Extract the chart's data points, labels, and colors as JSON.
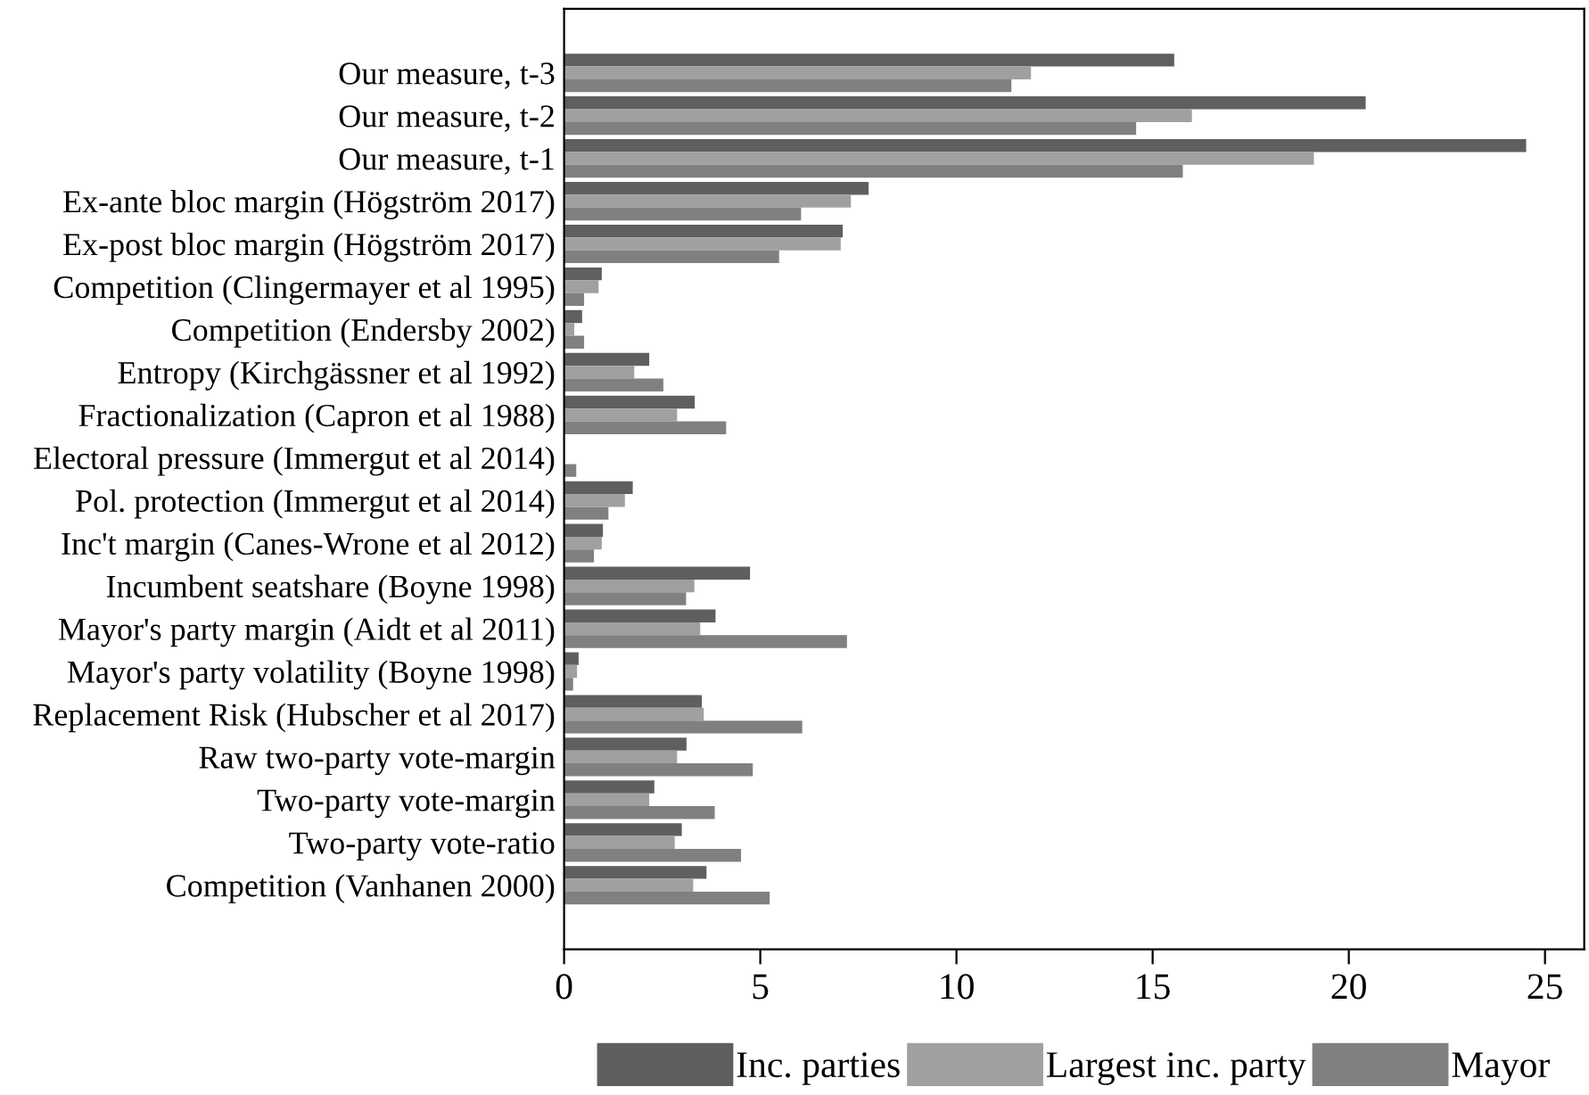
{
  "chart_data": {
    "type": "bar",
    "orientation": "horizontal",
    "categories": [
      "Our measure, t-3",
      "Our measure, t-2",
      "Our measure, t-1",
      "Ex-ante bloc margin (Högström 2017)",
      "Ex-post bloc margin (Högström 2017)",
      "Competition (Clingermayer et al 1995)",
      "Competition (Endersby 2002)",
      "Entropy (Kirchgässner et al 1992)",
      "Fractionalization (Capron et al 1988)",
      "Electoral pressure (Immergut et al 2014)",
      "Pol. protection (Immergut et al 2014)",
      "Inc't margin (Canes-Wrone et al 2012)",
      "Incumbent seatshare (Boyne 1998)",
      "Mayor's party margin (Aidt et al 2011)",
      "Mayor's party volatility (Boyne 1998)",
      "Replacement Risk (Hubscher et al 2017)",
      "Raw two-party vote-margin",
      "Two-party vote-margin",
      "Two-party vote-ratio",
      "Competition (Vanhanen 2000)"
    ],
    "series": [
      {
        "name": "Inc. parties",
        "color": "#5f5f5f",
        "values": [
          15.55,
          20.43,
          24.52,
          7.76,
          7.1,
          0.96,
          0.46,
          2.17,
          3.33,
          null,
          1.75,
          0.99,
          4.74,
          3.86,
          0.37,
          3.51,
          3.12,
          2.3,
          3.0,
          3.63
        ]
      },
      {
        "name": "Largest inc. party",
        "color": "#a0a0a0",
        "values": [
          11.9,
          16.0,
          19.11,
          7.31,
          7.05,
          0.88,
          0.26,
          1.79,
          2.88,
          null,
          1.55,
          0.96,
          3.32,
          3.47,
          0.33,
          3.56,
          2.88,
          2.17,
          2.82,
          3.29
        ]
      },
      {
        "name": "Mayor",
        "color": "#808080",
        "values": [
          11.4,
          14.58,
          15.77,
          6.04,
          5.48,
          0.51,
          0.51,
          2.53,
          4.13,
          0.31,
          1.13,
          0.76,
          3.11,
          7.21,
          0.23,
          6.07,
          4.81,
          3.84,
          4.51,
          5.24
        ]
      }
    ],
    "xlim": [
      0,
      26
    ],
    "xticks": [
      0,
      5,
      10,
      15,
      20,
      25
    ],
    "grid": false,
    "legend": "bottom"
  }
}
